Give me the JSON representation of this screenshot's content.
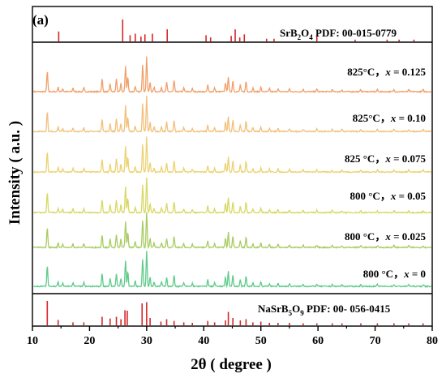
{
  "chart_data": {
    "type": "line",
    "panel_label": "(a)",
    "xlabel": "2θ ( degree )",
    "ylabel": "Intensity ( a.u. )",
    "xlim": [
      10,
      80
    ],
    "x_ticks": [
      10,
      20,
      30,
      40,
      50,
      60,
      70,
      80
    ],
    "y_ticks_shown": false,
    "reference_top": {
      "label_parts": [
        "SrB",
        "2",
        "O",
        "4",
        " PDF: 00-015-0779"
      ],
      "color": "#d62728",
      "peaks": [
        {
          "x": 14.6,
          "h": 0.45
        },
        {
          "x": 25.8,
          "h": 1.0
        },
        {
          "x": 27.1,
          "h": 0.28
        },
        {
          "x": 28.0,
          "h": 0.35
        },
        {
          "x": 29.0,
          "h": 0.22
        },
        {
          "x": 29.7,
          "h": 0.32
        },
        {
          "x": 31.0,
          "h": 0.35
        },
        {
          "x": 33.6,
          "h": 0.55
        },
        {
          "x": 40.4,
          "h": 0.28
        },
        {
          "x": 41.2,
          "h": 0.18
        },
        {
          "x": 44.8,
          "h": 0.25
        },
        {
          "x": 45.5,
          "h": 0.55
        },
        {
          "x": 46.3,
          "h": 0.18
        },
        {
          "x": 47.1,
          "h": 0.32
        },
        {
          "x": 51.0,
          "h": 0.12
        },
        {
          "x": 52.3,
          "h": 0.12
        },
        {
          "x": 59.8,
          "h": 0.22
        },
        {
          "x": 66.5,
          "h": 0.08
        },
        {
          "x": 72.1,
          "h": 0.08
        },
        {
          "x": 74.2,
          "h": 0.08
        },
        {
          "x": 76.8,
          "h": 0.08
        }
      ]
    },
    "reference_bottom": {
      "label_parts": [
        "NaSrB",
        "5",
        "O",
        "9",
        " PDF: 00- 056-0415"
      ],
      "color": "#d62728",
      "peaks": [
        {
          "x": 12.6,
          "h": 1.0
        },
        {
          "x": 14.5,
          "h": 0.22
        },
        {
          "x": 17.1,
          "h": 0.12
        },
        {
          "x": 19.0,
          "h": 0.12
        },
        {
          "x": 22.2,
          "h": 0.35
        },
        {
          "x": 23.6,
          "h": 0.28
        },
        {
          "x": 24.7,
          "h": 0.35
        },
        {
          "x": 25.5,
          "h": 0.25
        },
        {
          "x": 26.2,
          "h": 0.62
        },
        {
          "x": 26.6,
          "h": 0.6
        },
        {
          "x": 29.2,
          "h": 0.9
        },
        {
          "x": 30.0,
          "h": 0.95
        },
        {
          "x": 30.6,
          "h": 0.3
        },
        {
          "x": 32.5,
          "h": 0.15
        },
        {
          "x": 33.5,
          "h": 0.25
        },
        {
          "x": 34.8,
          "h": 0.18
        },
        {
          "x": 36.5,
          "h": 0.12
        },
        {
          "x": 38.0,
          "h": 0.1
        },
        {
          "x": 40.7,
          "h": 0.18
        },
        {
          "x": 41.9,
          "h": 0.12
        },
        {
          "x": 43.8,
          "h": 0.2
        },
        {
          "x": 44.3,
          "h": 0.55
        },
        {
          "x": 45.1,
          "h": 0.3
        },
        {
          "x": 46.4,
          "h": 0.2
        },
        {
          "x": 47.4,
          "h": 0.25
        },
        {
          "x": 48.6,
          "h": 0.12
        },
        {
          "x": 50.0,
          "h": 0.15
        },
        {
          "x": 51.5,
          "h": 0.1
        },
        {
          "x": 53.0,
          "h": 0.1
        },
        {
          "x": 55.0,
          "h": 0.1
        },
        {
          "x": 57.4,
          "h": 0.08
        },
        {
          "x": 59.8,
          "h": 0.08
        },
        {
          "x": 62.5,
          "h": 0.08
        },
        {
          "x": 64.2,
          "h": 0.08
        },
        {
          "x": 67.5,
          "h": 0.08
        },
        {
          "x": 70.4,
          "h": 0.08
        },
        {
          "x": 73.3,
          "h": 0.08
        },
        {
          "x": 75.9,
          "h": 0.08
        },
        {
          "x": 78.4,
          "h": 0.08
        }
      ]
    },
    "pattern_peaks": [
      {
        "x": 12.6,
        "h": 0.55
      },
      {
        "x": 14.5,
        "h": 0.12
      },
      {
        "x": 15.3,
        "h": 0.08
      },
      {
        "x": 17.1,
        "h": 0.1
      },
      {
        "x": 19.0,
        "h": 0.1
      },
      {
        "x": 22.2,
        "h": 0.35
      },
      {
        "x": 23.6,
        "h": 0.22
      },
      {
        "x": 24.7,
        "h": 0.35
      },
      {
        "x": 25.5,
        "h": 0.22
      },
      {
        "x": 26.3,
        "h": 0.7
      },
      {
        "x": 26.7,
        "h": 0.4
      },
      {
        "x": 28.0,
        "h": 0.15
      },
      {
        "x": 29.3,
        "h": 0.75
      },
      {
        "x": 30.0,
        "h": 0.95
      },
      {
        "x": 30.6,
        "h": 0.25
      },
      {
        "x": 31.3,
        "h": 0.12
      },
      {
        "x": 32.6,
        "h": 0.12
      },
      {
        "x": 33.5,
        "h": 0.25
      },
      {
        "x": 34.8,
        "h": 0.3
      },
      {
        "x": 36.5,
        "h": 0.1
      },
      {
        "x": 38.0,
        "h": 0.08
      },
      {
        "x": 40.7,
        "h": 0.18
      },
      {
        "x": 41.9,
        "h": 0.1
      },
      {
        "x": 43.8,
        "h": 0.25
      },
      {
        "x": 44.3,
        "h": 0.4
      },
      {
        "x": 45.1,
        "h": 0.3
      },
      {
        "x": 46.4,
        "h": 0.18
      },
      {
        "x": 47.4,
        "h": 0.28
      },
      {
        "x": 48.6,
        "h": 0.1
      },
      {
        "x": 50.0,
        "h": 0.12
      },
      {
        "x": 51.5,
        "h": 0.08
      },
      {
        "x": 53.0,
        "h": 0.08
      },
      {
        "x": 55.0,
        "h": 0.07
      },
      {
        "x": 57.4,
        "h": 0.06
      },
      {
        "x": 59.8,
        "h": 0.06
      },
      {
        "x": 62.5,
        "h": 0.05
      },
      {
        "x": 64.2,
        "h": 0.05
      },
      {
        "x": 67.5,
        "h": 0.05
      },
      {
        "x": 70.4,
        "h": 0.05
      },
      {
        "x": 73.3,
        "h": 0.05
      },
      {
        "x": 75.9,
        "h": 0.05
      },
      {
        "x": 78.4,
        "h": 0.05
      }
    ],
    "series": [
      {
        "name": "825°C, x = 0.125",
        "temp": "825°C，",
        "x_value": "0.125",
        "color": "#f0a06a"
      },
      {
        "name": "825°C, x = 0.10",
        "temp": "825°C，",
        "x_value": "0.10",
        "color": "#f2c07a"
      },
      {
        "name": "825 °C, x = 0.075",
        "temp": "825 °C，",
        "x_value": "0.075",
        "color": "#ecd272"
      },
      {
        "name": "800 °C, x = 0.05",
        "temp": "800 °C，",
        "x_value": "0.05",
        "color": "#d8d865"
      },
      {
        "name": "800 °C, x = 0.025",
        "temp": "800 °C，",
        "x_value": "0.025",
        "color": "#a8cc62"
      },
      {
        "name": "800 °C, x = 0",
        "temp": "800 °C，",
        "x_value": "0",
        "color": "#5fcb8a"
      }
    ],
    "x_symbol": "x",
    "equals": " = "
  }
}
